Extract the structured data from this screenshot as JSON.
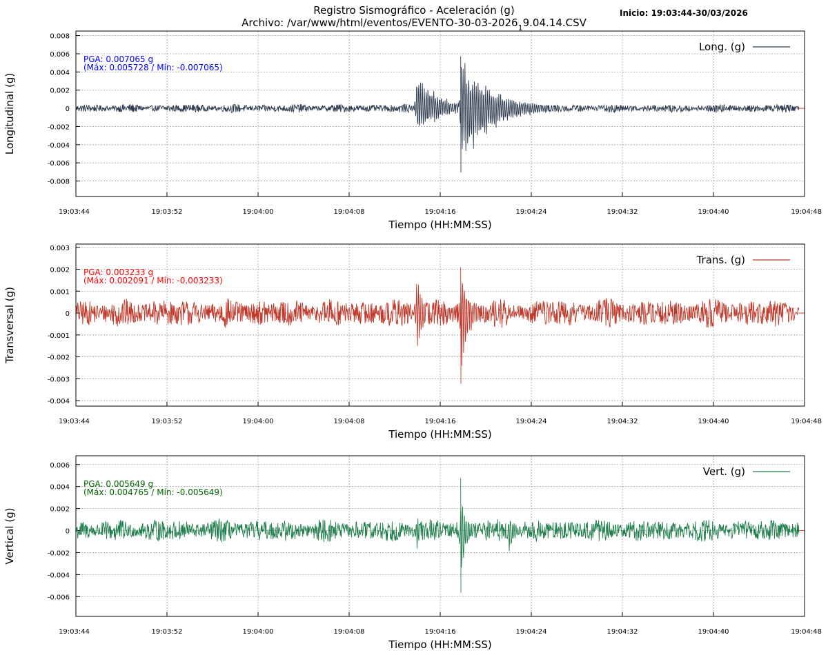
{
  "title": {
    "line1": "Registro Sismográfico - Aceleración (g)",
    "line2": "Archivo: /var/www/html/eventos/EVENTO-30-03-2026",
    "line2_sub": "1",
    "line2_tail": "9.04.14.CSV"
  },
  "start_label": "Inicio: 19:03:44-30/03/2026",
  "colors": {
    "grid": "#a0a0a0",
    "frame": "#000000",
    "zero_marker": "#e03030"
  },
  "chart_data": [
    {
      "type": "line",
      "ylabel": "Longitudinal (g)",
      "xlabel": "Tiempo (HH:MM:SS)",
      "x_range_seconds": [
        0,
        64
      ],
      "signal_end_seconds": 63.5,
      "x_tick_labels": [
        "19:03:44",
        "19:03:52",
        "19:04:00",
        "19:04:08",
        "19:04:16",
        "19:04:24",
        "19:04:32",
        "19:04:40",
        "19:04:48"
      ],
      "ylim": [
        -0.0097,
        0.0085
      ],
      "yticks": [
        0.008,
        0.006,
        0.004,
        0.002,
        0,
        -0.002,
        -0.004,
        -0.006,
        -0.008
      ],
      "ytick_labels": [
        "0.008",
        "0.006",
        "0.004",
        "0.002",
        "0",
        "-0.002",
        "-0.004",
        "-0.006",
        "-0.008"
      ],
      "grid": true,
      "legend": {
        "label": "Long. (g)",
        "position": "top-right"
      },
      "series_color": "#2b3a4e",
      "pga_label": "PGA: 0.007065 g",
      "pga_range_label": "(Máx: 0.005728 / Mín: -0.007065)",
      "annotation_color": "#0000ff",
      "stats": {
        "pga": 0.007065,
        "max": 0.005728,
        "min": -0.007065
      },
      "noise_amplitude": 0.0005,
      "events": [
        {
          "t": 29.9,
          "max": 0.0044,
          "min": -0.0035,
          "decay": 2.0
        },
        {
          "t": 33.8,
          "max": 0.0057,
          "min": -0.0071,
          "decay": 2.8
        }
      ]
    },
    {
      "type": "line",
      "ylabel": "Transversal (g)",
      "xlabel": "Tiempo (HH:MM:SS)",
      "x_range_seconds": [
        0,
        64
      ],
      "signal_end_seconds": 63.5,
      "x_tick_labels": [
        "19:03:44",
        "19:03:52",
        "19:04:00",
        "19:04:08",
        "19:04:16",
        "19:04:24",
        "19:04:32",
        "19:04:40",
        "19:04:48"
      ],
      "ylim": [
        -0.00425,
        0.00315
      ],
      "yticks": [
        0.003,
        0.002,
        0.001,
        0,
        -0.001,
        -0.002,
        -0.003,
        -0.004
      ],
      "ytick_labels": [
        "0.003",
        "0.002",
        "0.001",
        "0",
        "-0.001",
        "-0.002",
        "-0.003",
        "-0.004"
      ],
      "grid": true,
      "legend": {
        "label": "Trans. (g)",
        "position": "top-right"
      },
      "series_color": "#c0392b",
      "pga_label": "PGA: 0.003233 g",
      "pga_range_label": "(Máx: 0.002091 / Mín: -0.003233)",
      "annotation_color": "#ff0000",
      "stats": {
        "pga": 0.003233,
        "max": 0.002091,
        "min": -0.003233
      },
      "noise_amplitude": 0.0007,
      "events": [
        {
          "t": 29.9,
          "max": 0.0021,
          "min": -0.002,
          "decay": 0.7
        },
        {
          "t": 33.8,
          "max": 0.0019,
          "min": -0.0032,
          "decay": 0.8
        }
      ]
    },
    {
      "type": "line",
      "ylabel": "Vertical (g)",
      "xlabel": "Tiempo (HH:MM:SS)",
      "x_range_seconds": [
        0,
        64
      ],
      "signal_end_seconds": 63.5,
      "x_tick_labels": [
        "19:03:44",
        "19:03:52",
        "19:04:00",
        "19:04:08",
        "19:04:16",
        "19:04:24",
        "19:04:32",
        "19:04:40",
        "19:04:48"
      ],
      "ylim": [
        -0.0078,
        0.0068
      ],
      "yticks": [
        0.006,
        0.004,
        0.002,
        0,
        -0.002,
        -0.004,
        -0.006
      ],
      "ytick_labels": [
        "0.006",
        "0.004",
        "0.002",
        "0",
        "-0.002",
        "-0.004",
        "-0.006"
      ],
      "grid": true,
      "legend": {
        "label": "Vert. (g)",
        "position": "top-right"
      },
      "series_color": "#1e7d4a",
      "pga_label": "PGA: 0.005649 g",
      "pga_range_label": "(Máx: 0.004765 / Mín: -0.005649)",
      "annotation_color": "#006400",
      "stats": {
        "pga": 0.005649,
        "max": 0.004765,
        "min": -0.005649
      },
      "noise_amplitude": 0.0011,
      "events": [
        {
          "t": 29.9,
          "max": 0.0023,
          "min": -0.0022,
          "decay": 0.4
        },
        {
          "t": 33.8,
          "max": 0.0048,
          "min": -0.0056,
          "decay": 0.4
        },
        {
          "t": 38.0,
          "max": 0.0022,
          "min": -0.0029,
          "decay": 0.5
        }
      ]
    }
  ]
}
